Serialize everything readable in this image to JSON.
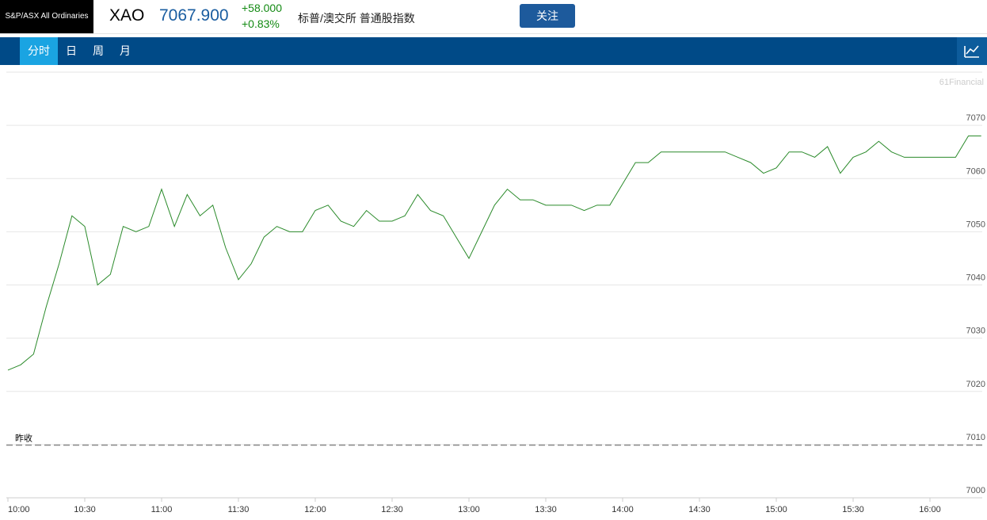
{
  "header": {
    "logo": "S&P/ASX All Ordinaries",
    "symbol": "XAO",
    "price": "7067.900",
    "change": "+58.000",
    "change_pct": "+0.83%",
    "name": "标普/澳交所 普通股指数",
    "button": "关注"
  },
  "tabs": {
    "items": [
      "分时",
      "日",
      "周",
      "月"
    ],
    "active": 0
  },
  "chart_data": {
    "type": "line",
    "watermark": "61Financial",
    "categories": [
      "10:00",
      null,
      null,
      null,
      null,
      null,
      "10:30",
      null,
      null,
      null,
      null,
      null,
      "11:00",
      null,
      null,
      null,
      null,
      null,
      "11:30",
      null,
      null,
      null,
      null,
      null,
      "12:00",
      null,
      null,
      null,
      null,
      null,
      "12:30",
      null,
      null,
      null,
      null,
      null,
      "13:00",
      null,
      null,
      null,
      null,
      null,
      "13:30",
      null,
      null,
      null,
      null,
      null,
      "14:00",
      null,
      null,
      null,
      null,
      null,
      "14:30",
      null,
      null,
      null,
      null,
      null,
      "15:00",
      null,
      null,
      null,
      null,
      null,
      "15:30",
      null,
      null,
      null,
      null,
      null,
      "16:00",
      null,
      null,
      null,
      null
    ],
    "series": [
      {
        "color": "#2a8a2a",
        "values": [
          7024,
          7025,
          7027,
          7036,
          7044,
          7053,
          7051,
          7040,
          7042,
          7051,
          7050,
          7051,
          7058,
          7051,
          7057,
          7053,
          7055,
          7047,
          7041,
          7044,
          7049,
          7051,
          7050,
          7050,
          7054,
          7055,
          7052,
          7051,
          7054,
          7052,
          7052,
          7053,
          7057,
          7054,
          7053,
          7049,
          7045,
          7050,
          7055,
          7058,
          7056,
          7056,
          7055,
          7055,
          7055,
          7054,
          7055,
          7055,
          7059,
          7063,
          7063,
          7065,
          7065,
          7065,
          7065,
          7065,
          7065,
          7064,
          7063,
          7061,
          7062,
          7065,
          7065,
          7064,
          7066,
          7061,
          7064,
          7065,
          7067,
          7065,
          7064,
          7064,
          7064,
          7064,
          7064,
          7068,
          7068
        ]
      }
    ],
    "reference": {
      "label": "昨收",
      "value": 7009.9
    },
    "ylim": [
      7000,
      7080
    ],
    "yticks": [
      7000,
      7010,
      7020,
      7030,
      7040,
      7050,
      7060,
      7070
    ],
    "grid": true
  }
}
